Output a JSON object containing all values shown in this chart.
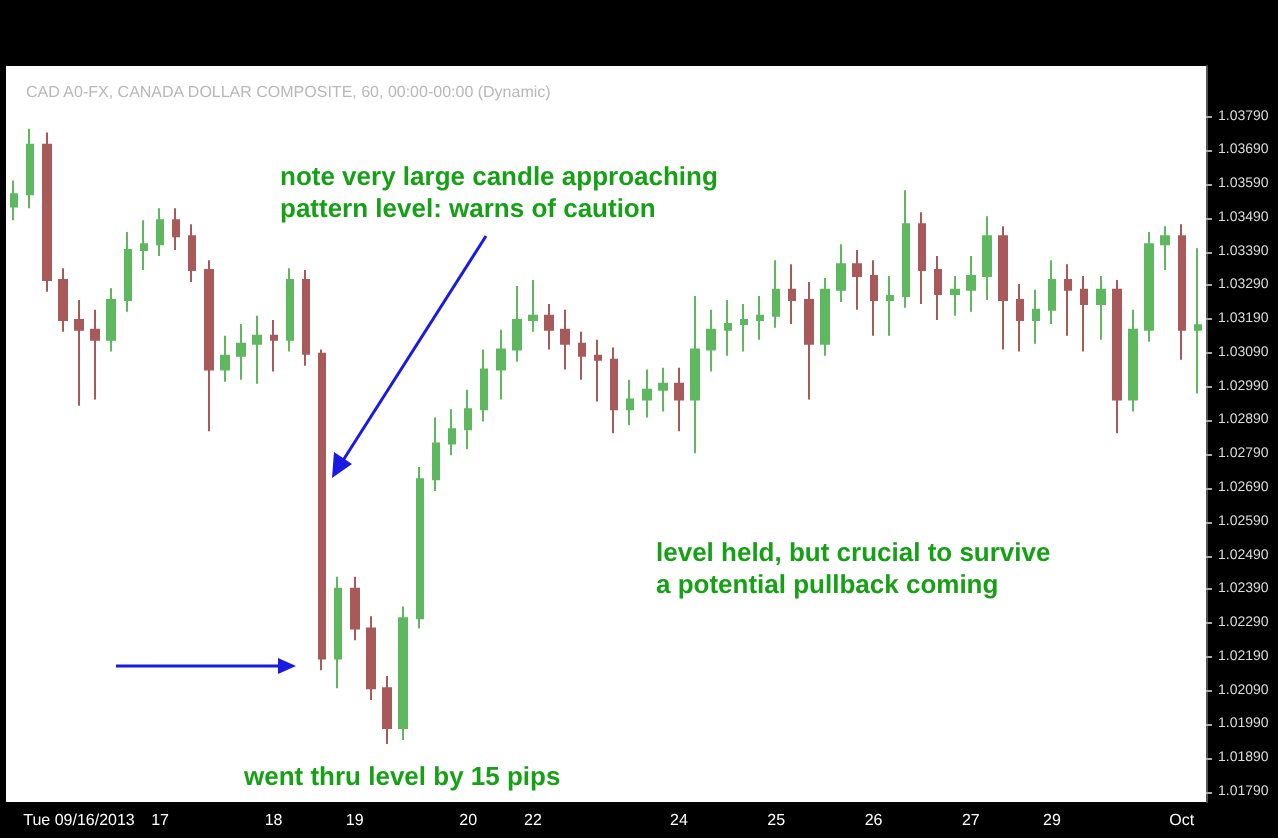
{
  "chart_data": {
    "type": "candlestick",
    "title": "CAD A0-FX, CANADA DOLLAR COMPOSITE, 60, 00:00-00:00 (Dynamic)",
    "categories": [
      null,
      null,
      null,
      null,
      "Tue 09/16/2013",
      null,
      null,
      null,
      null,
      "17",
      null,
      null,
      null,
      null,
      null,
      null,
      "18",
      null,
      null,
      null,
      null,
      "19",
      null,
      null,
      null,
      null,
      null,
      null,
      "20",
      null,
      null,
      null,
      "22",
      null,
      null,
      null,
      null,
      null,
      null,
      null,
      null,
      "24",
      null,
      null,
      null,
      null,
      null,
      "25",
      null,
      null,
      null,
      null,
      null,
      "26",
      null,
      null,
      null,
      null,
      null,
      "27",
      null,
      null,
      null,
      null,
      "29",
      null,
      null,
      null,
      null,
      null,
      null,
      null,
      "Oct",
      null
    ],
    "ohlc": [
      [
        1.03524,
        1.03601,
        1.03483,
        1.0356
      ],
      [
        1.0356,
        1.03754,
        1.03519,
        1.03707
      ],
      [
        1.03707,
        1.03743,
        1.03271,
        1.03306
      ],
      [
        1.03306,
        1.03341,
        1.03153,
        1.03188
      ],
      [
        1.03188,
        1.03247,
        1.02934,
        1.03159
      ],
      [
        1.03159,
        1.03218,
        1.02952,
        1.03129
      ],
      [
        1.03129,
        1.03282,
        1.03094,
        1.03247
      ],
      [
        1.03247,
        1.03448,
        1.03212,
        1.03395
      ],
      [
        1.03395,
        1.03483,
        1.03336,
        1.03412
      ],
      [
        1.03412,
        1.03519,
        1.03377,
        1.03483
      ],
      [
        1.03483,
        1.03519,
        1.03395,
        1.03436
      ],
      [
        1.03436,
        1.03471,
        1.033,
        1.03336
      ],
      [
        1.03336,
        1.03365,
        1.02858,
        1.03041
      ],
      [
        1.03041,
        1.03141,
        1.03005,
        1.03082
      ],
      [
        1.03082,
        1.03176,
        1.03011,
        1.03117
      ],
      [
        1.03117,
        1.032,
        1.02999,
        1.03141
      ],
      [
        1.03141,
        1.03188,
        1.03035,
        1.03129
      ],
      [
        1.03129,
        1.03341,
        1.03094,
        1.03306
      ],
      [
        1.03306,
        1.03336,
        1.03052,
        1.03088
      ],
      [
        1.03088,
        1.031,
        1.0215,
        1.02185
      ],
      [
        1.02185,
        1.02427,
        1.02097,
        1.02392
      ],
      [
        1.02392,
        1.02427,
        1.02239,
        1.02274
      ],
      [
        1.02274,
        1.0231,
        1.02062,
        1.02097
      ],
      [
        1.02097,
        1.02133,
        1.01932,
        1.01979
      ],
      [
        1.01979,
        1.02339,
        1.01944,
        1.02304
      ],
      [
        1.02304,
        1.02752,
        1.02274,
        1.02716
      ],
      [
        1.02716,
        1.02899,
        1.02681,
        1.02822
      ],
      [
        1.02822,
        1.02923,
        1.02787,
        1.02864
      ],
      [
        1.02864,
        1.02981,
        1.02805,
        1.02923
      ],
      [
        1.02923,
        1.031,
        1.02887,
        1.03041
      ],
      [
        1.03041,
        1.03159,
        1.02952,
        1.031
      ],
      [
        1.031,
        1.03288,
        1.03064,
        1.03188
      ],
      [
        1.03188,
        1.03306,
        1.03153,
        1.032
      ],
      [
        1.032,
        1.03235,
        1.031,
        1.03159
      ],
      [
        1.03159,
        1.03218,
        1.03041,
        1.03117
      ],
      [
        1.03117,
        1.03153,
        1.03011,
        1.03082
      ],
      [
        1.03082,
        1.03129,
        1.02946,
        1.0307
      ],
      [
        1.0307,
        1.03106,
        1.02852,
        1.02923
      ],
      [
        1.02923,
        1.03011,
        1.02876,
        1.02952
      ],
      [
        1.02952,
        1.03041,
        1.02899,
        1.02981
      ],
      [
        1.02981,
        1.03046,
        1.02917,
        1.02999
      ],
      [
        1.02999,
        1.03046,
        1.02858,
        1.02952
      ],
      [
        1.02952,
        1.03259,
        1.02793,
        1.031
      ],
      [
        1.031,
        1.03218,
        1.03035,
        1.03159
      ],
      [
        1.03159,
        1.03247,
        1.03082,
        1.03176
      ],
      [
        1.03176,
        1.03235,
        1.03094,
        1.03188
      ],
      [
        1.03188,
        1.03259,
        1.03129,
        1.032
      ],
      [
        1.032,
        1.03365,
        1.03165,
        1.03277
      ],
      [
        1.03277,
        1.03353,
        1.03176,
        1.03247
      ],
      [
        1.03247,
        1.033,
        1.02952,
        1.03117
      ],
      [
        1.03117,
        1.03312,
        1.03082,
        1.03277
      ],
      [
        1.03277,
        1.03412,
        1.03241,
        1.03353
      ],
      [
        1.03353,
        1.03395,
        1.03218,
        1.03318
      ],
      [
        1.03318,
        1.03365,
        1.03141,
        1.03247
      ],
      [
        1.03247,
        1.03318,
        1.03141,
        1.03259
      ],
      [
        1.03259,
        1.03572,
        1.03224,
        1.03471
      ],
      [
        1.03471,
        1.03507,
        1.03235,
        1.03336
      ],
      [
        1.03336,
        1.03377,
        1.03188,
        1.03265
      ],
      [
        1.03265,
        1.03318,
        1.032,
        1.03277
      ],
      [
        1.03277,
        1.03377,
        1.03212,
        1.03318
      ],
      [
        1.03318,
        1.03495,
        1.03247,
        1.03436
      ],
      [
        1.03436,
        1.03465,
        1.031,
        1.03247
      ],
      [
        1.03247,
        1.03294,
        1.03094,
        1.03188
      ],
      [
        1.03188,
        1.03277,
        1.03117,
        1.03218
      ],
      [
        1.03218,
        1.03365,
        1.03176,
        1.03306
      ],
      [
        1.03306,
        1.03353,
        1.03141,
        1.03277
      ],
      [
        1.03277,
        1.03318,
        1.03094,
        1.03235
      ],
      [
        1.03235,
        1.03318,
        1.03129,
        1.03277
      ],
      [
        1.03277,
        1.03306,
        1.02852,
        1.02952
      ],
      [
        1.02952,
        1.03218,
        1.02917,
        1.03159
      ],
      [
        1.03159,
        1.03448,
        1.03123,
        1.03412
      ],
      [
        1.03412,
        1.03465,
        1.03336,
        1.03436
      ],
      [
        1.03436,
        1.03471,
        1.0307,
        1.03159
      ],
      [
        1.03159,
        1.034,
        1.0297,
        1.03172
      ]
    ],
    "ylim": [
      1.0176,
      1.0394
    ],
    "yticks": [
      {
        "value": 1.0179,
        "label": "1.01790"
      },
      {
        "value": 1.0189,
        "label": "1.01890"
      },
      {
        "value": 1.0199,
        "label": "1.01990"
      },
      {
        "value": 1.0209,
        "label": "1.02090"
      },
      {
        "value": 1.0219,
        "label": "1.02190"
      },
      {
        "value": 1.0229,
        "label": "1.02290"
      },
      {
        "value": 1.0239,
        "label": "1.02390"
      },
      {
        "value": 1.0249,
        "label": "1.02490"
      },
      {
        "value": 1.0259,
        "label": "1.02590"
      },
      {
        "value": 1.0269,
        "label": "1.02690"
      },
      {
        "value": 1.0279,
        "label": "1.02790"
      },
      {
        "value": 1.0289,
        "label": "1.02890"
      },
      {
        "value": 1.0299,
        "label": "1.02990"
      },
      {
        "value": 1.0309,
        "label": "1.03090"
      },
      {
        "value": 1.0319,
        "label": "1.03190"
      },
      {
        "value": 1.0329,
        "label": "1.03290"
      },
      {
        "value": 1.0339,
        "label": "1.03390"
      },
      {
        "value": 1.0349,
        "label": "1.03490"
      },
      {
        "value": 1.0359,
        "label": "1.03590"
      },
      {
        "value": 1.0369,
        "label": "1.03690"
      },
      {
        "value": 1.0379,
        "label": "1.03790"
      }
    ],
    "grid": false,
    "annotations": [
      "note very large candle approaching\npattern level: warns of caution",
      "went thru level by 15 pips",
      "level held, but crucial to survive\na potential pullback coming"
    ]
  }
}
